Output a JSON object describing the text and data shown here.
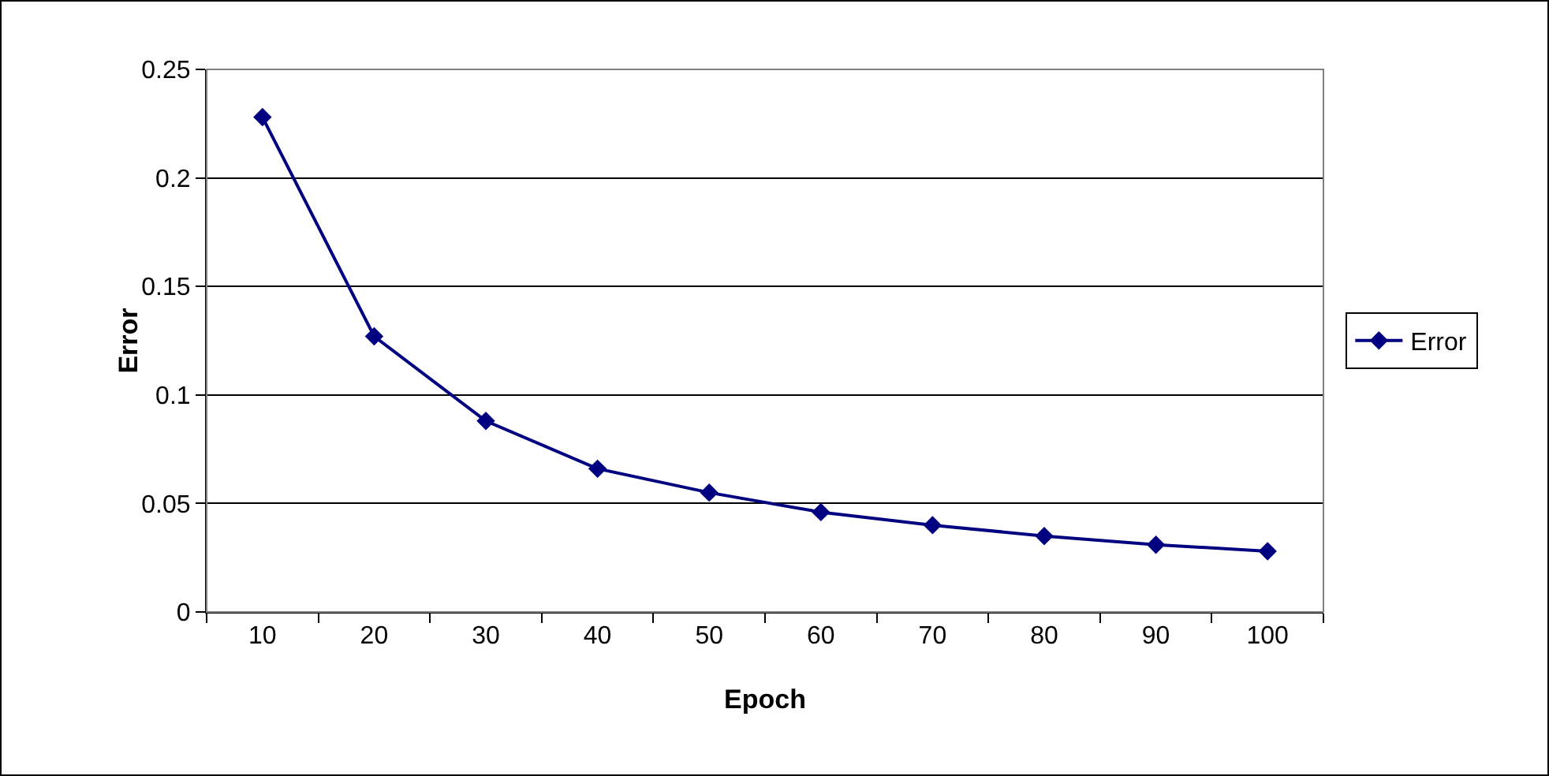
{
  "chart_data": {
    "type": "line",
    "xlabel": "Epoch",
    "ylabel": "Error",
    "categories": [
      "10",
      "20",
      "30",
      "40",
      "50",
      "60",
      "70",
      "80",
      "90",
      "100"
    ],
    "series": [
      {
        "name": "Error",
        "color": "#000080",
        "values": [
          0.228,
          0.127,
          0.088,
          0.066,
          0.055,
          0.046,
          0.04,
          0.035,
          0.031,
          0.028
        ]
      }
    ],
    "ylim": [
      0,
      0.25
    ],
    "yticks": [
      0,
      0.05,
      0.1,
      0.15,
      0.2,
      0.25
    ],
    "grid": "y",
    "legend": "right",
    "marker": "diamond",
    "line_style": "solid"
  }
}
